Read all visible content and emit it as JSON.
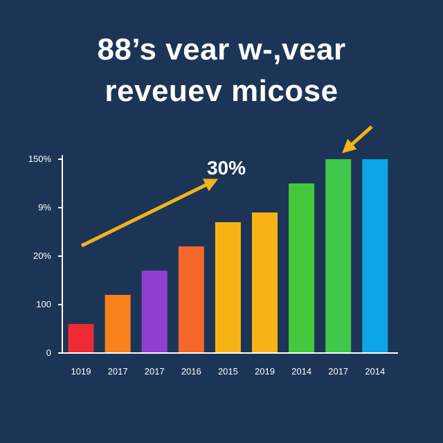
{
  "title": {
    "line1": "88’s vear w-,vear",
    "line2": "reveuev micose"
  },
  "chart_data": {
    "type": "bar",
    "title": "88’s vear w-,vear reveuev micose",
    "xlabel": "",
    "ylabel": "",
    "categories": [
      "1019",
      "2017",
      "2017",
      "2016",
      "2015",
      "2019",
      "2014",
      "2017",
      "2014"
    ],
    "series": [
      {
        "values": [
          0.6,
          1.2,
          1.7,
          2.2,
          2.7,
          2.9,
          3.5,
          4.0,
          4.0
        ]
      }
    ],
    "ytick_labels": [
      "0",
      "100",
      "20%",
      "9%",
      "150%"
    ],
    "yticks": [
      0,
      1,
      2,
      3,
      4
    ],
    "ylim": [
      0,
      4
    ],
    "bar_colors": [
      "#ee2a35",
      "#f8821c",
      "#8f3fcf",
      "#f4662a",
      "#f8b416",
      "#f8b416",
      "#45c83c",
      "#3fc84a",
      "#0ea5e6"
    ],
    "annotation": {
      "text": "30%",
      "color": "#f4b21b"
    },
    "axis_color": "#ffffff",
    "grid": false
  }
}
